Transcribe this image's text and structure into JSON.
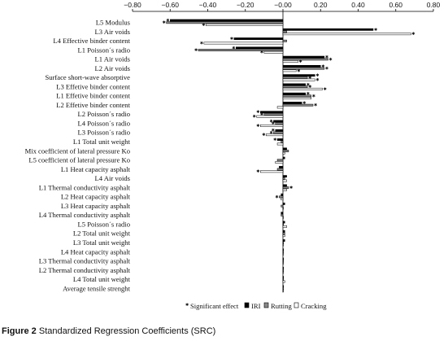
{
  "caption": {
    "label": "Figure 2",
    "text": "Standardized Regression Coefficients (SRC)"
  },
  "legend": {
    "significant": "Significant effect",
    "series": [
      "IRI",
      "Rutting",
      "Cracking"
    ]
  },
  "chart_data": {
    "type": "bar",
    "orientation": "horizontal",
    "xlim": [
      -0.8,
      0.8
    ],
    "xticks": [
      "−0.80",
      "−0.60",
      "−0.40",
      "−0.20",
      "−0.00",
      "0.20",
      "0.40",
      "0.60",
      "0.80"
    ],
    "xtick_values": [
      -0.8,
      -0.6,
      -0.4,
      -0.2,
      0.0,
      0.2,
      0.4,
      0.6,
      0.8
    ],
    "axis_position": "top",
    "grid": false,
    "legend_position": "bottom",
    "colors": {
      "IRI": "#000000",
      "Rutting": "#888888",
      "Cracking": "#ffffff",
      "outline": "#000000"
    },
    "categories": [
      "L5 Modulus",
      "L3 Air voids",
      "L4 Effective binder content",
      "L1 Poisson´s radio",
      "L1 Air voids",
      "L2 Air voids",
      "Surface short-wave absorptive",
      "L3 Effetive binder content",
      "L1 Effetive binder content",
      "L2 Effetive binder content",
      "L2 Poisson´s radio",
      "L4 Poisson´s radio",
      "L3 Poisson´s radio",
      "L1 Total unit weight",
      "Mix coefficient of lateral pressure Ko",
      "L5 coefficient of lateral pressure Ko",
      "L1 Heat capacity asphalt",
      "L4 Air voids",
      "L1 Thermal conductivity asphalt",
      "L2 Heat capacity asphalt",
      "L3 Heat capacity asphalt",
      "L4 Thermal conductivity asphalt",
      "L5 Poisson´s radio",
      "L2 Total unit weight",
      "L3 Total unit weight",
      "L4 Heat capacity asphalt",
      "L3 Thermal conductivity asphalt",
      "L2 Thermal conductivity asphalt",
      "L4 Total unit weight",
      "Average tensile strenght"
    ],
    "series": [
      {
        "name": "IRI",
        "values": [
          -0.6,
          0.48,
          -0.26,
          -0.25,
          0.22,
          0.2,
          0.17,
          0.12,
          0.12,
          0.1,
          -0.12,
          -0.05,
          -0.04,
          -0.03,
          0.02,
          0.01,
          -0.02,
          0.02,
          0.02,
          -0.01,
          0.01,
          -0.01,
          0.01,
          0.01,
          0.01,
          0.0,
          0.0,
          0.0,
          0.0,
          0.0
        ],
        "significant": [
          true,
          true,
          true,
          true,
          true,
          true,
          true,
          true,
          true,
          true,
          true,
          true,
          true,
          true,
          false,
          false,
          false,
          false,
          false,
          false,
          false,
          false,
          false,
          false,
          false,
          false,
          false,
          false,
          false,
          false
        ]
      },
      {
        "name": "Rutting",
        "values": [
          -0.62,
          0.02,
          0.02,
          -0.45,
          0.24,
          0.22,
          0.13,
          0.13,
          0.15,
          0.16,
          -0.1,
          -0.04,
          -0.05,
          -0.01,
          0.03,
          -0.03,
          -0.03,
          0.01,
          0.03,
          -0.02,
          -0.01,
          -0.01,
          0.0,
          0.01,
          0.0,
          0.0,
          0.0,
          0.0,
          0.0,
          0.0
        ],
        "significant": [
          true,
          false,
          false,
          true,
          true,
          true,
          true,
          true,
          true,
          true,
          true,
          true,
          true,
          false,
          false,
          false,
          false,
          false,
          true,
          true,
          false,
          false,
          false,
          false,
          false,
          false,
          false,
          false,
          false,
          false
        ]
      },
      {
        "name": "Cracking",
        "values": [
          -0.41,
          0.68,
          -0.42,
          -0.1,
          0.08,
          0.07,
          0.17,
          0.21,
          0.15,
          -0.03,
          -0.14,
          -0.12,
          -0.09,
          -0.03,
          0.01,
          -0.04,
          -0.12,
          0.02,
          0.02,
          -0.01,
          0.0,
          0.0,
          0.02,
          0.01,
          0.0,
          0.0,
          0.0,
          0.0,
          0.01,
          0.0
        ],
        "significant": [
          true,
          true,
          true,
          true,
          true,
          true,
          true,
          true,
          false,
          false,
          true,
          true,
          true,
          false,
          false,
          false,
          true,
          false,
          false,
          false,
          false,
          false,
          false,
          false,
          false,
          false,
          false,
          false,
          false,
          false
        ]
      }
    ]
  }
}
